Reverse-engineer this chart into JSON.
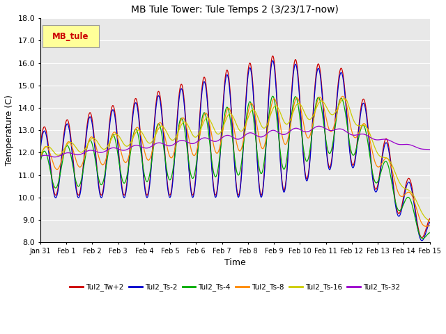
{
  "title": "MB Tule Tower: Tule Temps 2 (3/23/17-now)",
  "xlabel": "Time",
  "ylabel": "Temperature (C)",
  "ylim": [
    8.0,
    18.0
  ],
  "yticks": [
    8.0,
    9.0,
    10.0,
    11.0,
    12.0,
    13.0,
    14.0,
    15.0,
    16.0,
    17.0,
    18.0
  ],
  "date_labels": [
    "Jan 31",
    "Feb 1",
    "Feb 2",
    "Feb 3",
    "Feb 4",
    "Feb 5",
    "Feb 6",
    "Feb 7",
    "Feb 8",
    "Feb 9",
    "Feb 10",
    "Feb 11",
    "Feb 12",
    "Feb 13",
    "Feb 14",
    "Feb 15"
  ],
  "series_names": [
    "Tul2_Tw+2",
    "Tul2_Ts-2",
    "Tul2_Ts-4",
    "Tul2_Ts-8",
    "Tul2_Ts-16",
    "Tul2_Ts-32"
  ],
  "series_colors": [
    "#cc0000",
    "#0000cc",
    "#00aa00",
    "#ff8800",
    "#cccc00",
    "#9900cc"
  ],
  "inset_label": "MB_tule",
  "inset_label_color": "#cc0000",
  "background_color": "#ffffff",
  "plot_bg_color": "#e8e8e8",
  "grid_color": "#ffffff"
}
